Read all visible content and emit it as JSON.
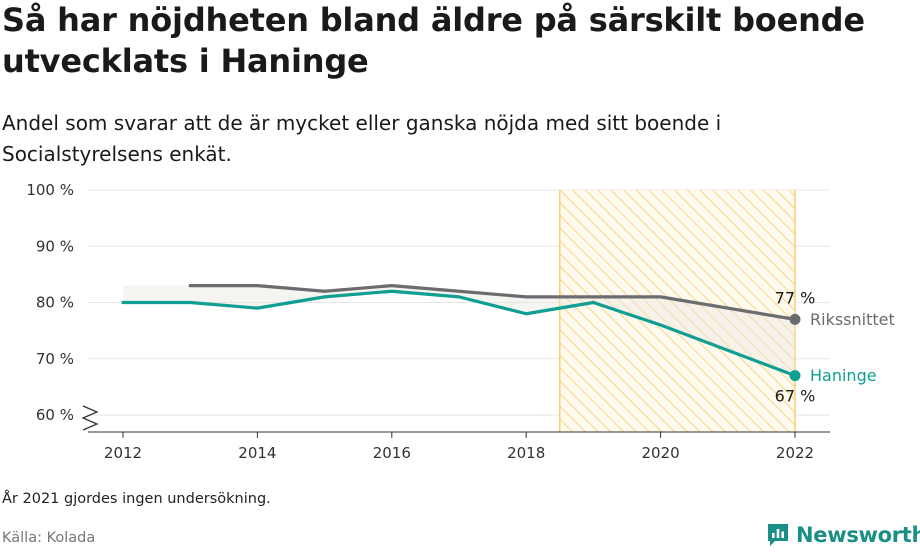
{
  "title": "Så har nöjdheten bland äldre på särskilt boende utvecklats i Haninge",
  "subtitle": "Andel som svarar att de är mycket eller ganska nöjda med sitt boende i Socialstyrelsens enkät.",
  "note": "År 2021 gjordes ingen undersökning.",
  "source": "Källa: Kolada",
  "brand": {
    "name": "Newsworthy",
    "logo_icon": "newsworthy-logo-icon",
    "color": "#1a8f85"
  },
  "chart_data": {
    "type": "line",
    "y_axis": {
      "min": 60,
      "max": 100,
      "ticks": [
        60,
        70,
        80,
        90,
        100
      ],
      "tick_labels": [
        "60 %",
        "70 %",
        "80 %",
        "90 %",
        "100 %"
      ],
      "broken_axis": true
    },
    "x_axis": {
      "min": 2012,
      "max": 2022,
      "ticks": [
        2012,
        2014,
        2016,
        2018,
        2020,
        2022
      ],
      "tick_labels": [
        "2012",
        "2014",
        "2016",
        "2018",
        "2020",
        "2022"
      ]
    },
    "highlight_region": {
      "x_start": 2018.5,
      "x_end": 2022,
      "pattern": "diagonal-hatch",
      "color": "#f2c94c"
    },
    "grid": true,
    "series": [
      {
        "name": "Rikssnittet",
        "color": "#6b6b70",
        "points": [
          [
            2013,
            83
          ],
          [
            2014,
            83
          ],
          [
            2015,
            82
          ],
          [
            2016,
            83
          ],
          [
            2017,
            82
          ],
          [
            2018,
            81
          ],
          [
            2019,
            81
          ],
          [
            2020,
            81
          ],
          [
            2022,
            77
          ]
        ],
        "end_value_label": "77 %"
      },
      {
        "name": "Haninge",
        "color": "#0f9e92",
        "points": [
          [
            2012,
            80
          ],
          [
            2013,
            80
          ],
          [
            2014,
            79
          ],
          [
            2015,
            81
          ],
          [
            2016,
            82
          ],
          [
            2017,
            81
          ],
          [
            2018,
            78
          ],
          [
            2019,
            80
          ],
          [
            2020,
            76
          ],
          [
            2022,
            67
          ]
        ],
        "end_value_label": "67 %"
      }
    ]
  }
}
